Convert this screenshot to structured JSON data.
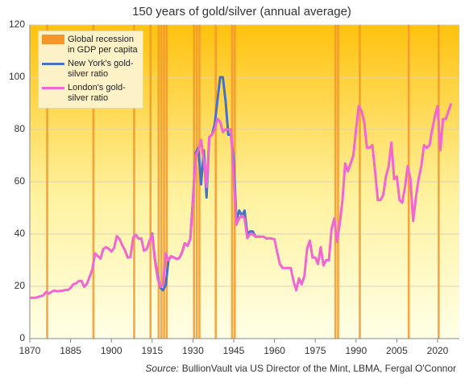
{
  "chart_data": {
    "type": "line",
    "title": "150 years of gold/silver (annual average)",
    "source_label": "Source:",
    "source": "BullionVault via US Director of the Mint, LBMA, Fergal O'Connor",
    "x": [
      1870,
      1871,
      1872,
      1873,
      1874,
      1875,
      1876,
      1877,
      1878,
      1879,
      1880,
      1881,
      1882,
      1883,
      1884,
      1885,
      1886,
      1887,
      1888,
      1889,
      1890,
      1891,
      1892,
      1893,
      1894,
      1895,
      1896,
      1897,
      1898,
      1899,
      1900,
      1901,
      1902,
      1903,
      1904,
      1905,
      1906,
      1907,
      1908,
      1909,
      1910,
      1911,
      1912,
      1913,
      1914,
      1915,
      1916,
      1917,
      1918,
      1919,
      1920,
      1921,
      1922,
      1923,
      1924,
      1925,
      1926,
      1927,
      1928,
      1929,
      1930,
      1931,
      1932,
      1933,
      1934,
      1935,
      1936,
      1937,
      1938,
      1939,
      1940,
      1941,
      1942,
      1943,
      1944,
      1945,
      1946,
      1947,
      1948,
      1949,
      1950,
      1951,
      1952,
      1953,
      1954,
      1955,
      1956,
      1957,
      1958,
      1959,
      1960,
      1961,
      1962,
      1963,
      1964,
      1965,
      1966,
      1967,
      1968,
      1969,
      1970,
      1971,
      1972,
      1973,
      1974,
      1975,
      1976,
      1977,
      1978,
      1979,
      1980,
      1981,
      1982,
      1983,
      1984,
      1985,
      1986,
      1987,
      1988,
      1989,
      1990,
      1991,
      1992,
      1993,
      1994,
      1995,
      1996,
      1997,
      1998,
      1999,
      2000,
      2001,
      2002,
      2003,
      2004,
      2005,
      2006,
      2007,
      2008,
      2009,
      2010,
      2011,
      2012,
      2013,
      2014,
      2015,
      2016,
      2017,
      2018,
      2019,
      2020,
      2021,
      2022,
      2023,
      2024,
      2025
    ],
    "recessions": {
      "name": "Global recession in GDP per capita",
      "color": "#f5962a",
      "x": [
        1876,
        1893,
        1908,
        1914,
        1917,
        1918,
        1919,
        1920,
        1930,
        1931,
        1932,
        1938,
        1944,
        1945,
        1982,
        1983,
        1991,
        2009,
        2020
      ]
    },
    "series": [
      {
        "name": "New York's gold-silver ratio",
        "color": "#4472c4",
        "values": [
          null,
          null,
          null,
          null,
          null,
          null,
          null,
          null,
          null,
          null,
          null,
          null,
          null,
          null,
          null,
          null,
          null,
          null,
          null,
          null,
          null,
          null,
          null,
          null,
          null,
          null,
          null,
          null,
          null,
          null,
          null,
          null,
          null,
          null,
          null,
          null,
          null,
          null,
          null,
          null,
          null,
          null,
          null,
          null,
          null,
          40.5,
          30.5,
          24,
          19.5,
          18.5,
          20.5,
          30,
          31.5,
          31,
          30.5,
          30.8,
          33,
          36.5,
          35.5,
          38,
          53,
          71,
          73,
          59,
          72,
          54,
          77,
          78,
          82,
          91,
          100,
          100,
          91,
          78,
          78,
          68,
          45,
          49,
          47,
          49,
          40,
          41,
          41,
          39,
          39,
          39,
          null,
          null,
          null,
          null,
          null,
          null,
          null,
          null,
          null,
          null,
          null,
          null,
          null,
          null,
          null,
          null,
          null,
          null,
          null,
          null,
          null,
          null,
          null,
          null,
          null,
          null,
          null,
          null,
          null,
          null,
          null,
          null,
          null,
          null,
          null,
          null,
          null,
          null,
          null,
          null,
          null,
          null,
          null,
          null,
          null,
          null,
          null,
          null,
          null,
          null,
          null,
          null,
          null,
          null,
          null,
          null,
          null,
          null,
          null,
          null,
          null,
          null,
          null,
          null,
          null,
          null,
          null,
          null,
          null,
          null
        ]
      },
      {
        "name": "London's gold-silver ratio",
        "color": "#f266d2",
        "values": [
          15.6,
          15.6,
          15.6,
          15.9,
          16.2,
          16.6,
          17.8,
          17.2,
          17.9,
          18.4,
          18.1,
          18.2,
          18.3,
          18.6,
          18.6,
          19.4,
          20.8,
          21.1,
          22,
          22.1,
          19.8,
          20.9,
          23.7,
          26.5,
          32.6,
          31.6,
          30.6,
          34.2,
          35,
          34.4,
          33.3,
          34.7,
          39.2,
          38.1,
          35.7,
          33.8,
          31,
          31.2,
          38.6,
          39.7,
          38.2,
          38.3,
          33.6,
          34.2,
          37.4,
          39.8,
          30.1,
          23.1,
          19.8,
          20.5,
          32.5,
          30,
          31.5,
          31,
          30.5,
          30.8,
          33,
          36.5,
          35.5,
          38,
          53,
          70,
          72,
          76,
          68,
          58,
          77,
          78,
          80,
          84,
          83,
          79,
          80,
          80,
          80,
          62,
          43.6,
          46,
          47,
          46,
          38.4,
          40,
          40,
          39,
          39,
          39,
          39,
          38.3,
          38.4,
          38.3,
          38,
          33,
          28.5,
          27,
          27,
          27,
          27,
          22,
          18.5,
          23,
          20.8,
          24,
          34.5,
          37.5,
          31,
          31,
          28.5,
          35,
          28,
          30,
          30,
          42,
          46,
          37,
          44,
          53,
          67,
          64,
          67,
          70,
          80,
          89,
          87,
          83,
          73,
          73,
          74,
          64,
          53,
          53,
          55,
          62,
          66,
          75,
          61,
          62,
          53,
          52,
          58,
          66,
          61,
          45,
          54,
          61,
          66,
          74,
          73,
          74,
          80,
          85,
          89,
          72,
          84,
          84,
          87,
          90
        ]
      }
    ],
    "xlim": [
      1870,
      2028
    ],
    "xticks": [
      1870,
      1885,
      1900,
      1915,
      1930,
      1945,
      1960,
      1975,
      1990,
      2005,
      2020
    ],
    "ylim": [
      0,
      120
    ],
    "yticks": [
      0,
      20,
      40,
      60,
      80,
      100,
      120
    ],
    "grid": true
  }
}
